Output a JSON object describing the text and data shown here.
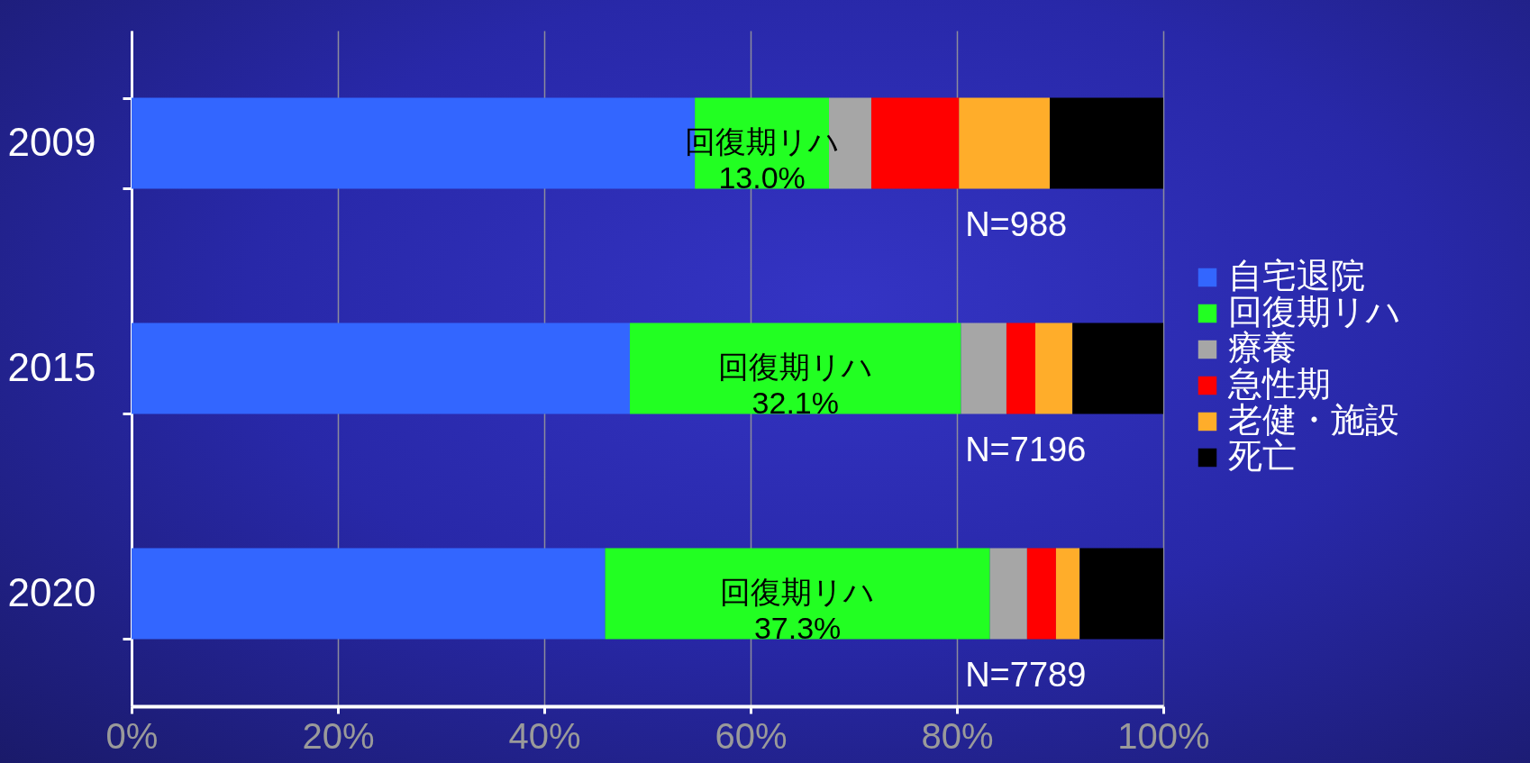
{
  "chart_data": {
    "type": "bar",
    "orientation": "horizontal",
    "stacked": true,
    "categories": [
      "2009",
      "2015",
      "2020"
    ],
    "series": [
      {
        "name": "自宅退院",
        "color": "#3366ff",
        "values": [
          54.6,
          48.3,
          45.9
        ]
      },
      {
        "name": "回復期リハ",
        "color": "#22ff22",
        "values": [
          13.0,
          32.1,
          37.3
        ],
        "value_labels": [
          "13.0%",
          "32.1%",
          "37.3%"
        ]
      },
      {
        "name": "療養",
        "color": "#a6a6a6",
        "values": [
          4.1,
          4.4,
          3.6
        ]
      },
      {
        "name": "急性期",
        "color": "#ff0000",
        "values": [
          8.5,
          2.8,
          2.8
        ]
      },
      {
        "name": "老健・施設",
        "color": "#ffad2a",
        "values": [
          8.8,
          3.6,
          2.3
        ]
      },
      {
        "name": "死亡",
        "color": "#000000",
        "values": [
          11.0,
          8.8,
          8.1
        ]
      }
    ],
    "xlim": [
      0,
      100
    ],
    "xticks": [
      {
        "value": 0,
        "label": "0%"
      },
      {
        "value": 20,
        "label": "20%"
      },
      {
        "value": 40,
        "label": "40%"
      },
      {
        "value": 60,
        "label": "60%"
      },
      {
        "value": 80,
        "label": "80%"
      },
      {
        "value": 100,
        "label": "100%"
      }
    ],
    "grid": "x",
    "legend": "right",
    "annotations": [
      "N=988",
      "N=7196",
      "N=7789"
    ]
  }
}
